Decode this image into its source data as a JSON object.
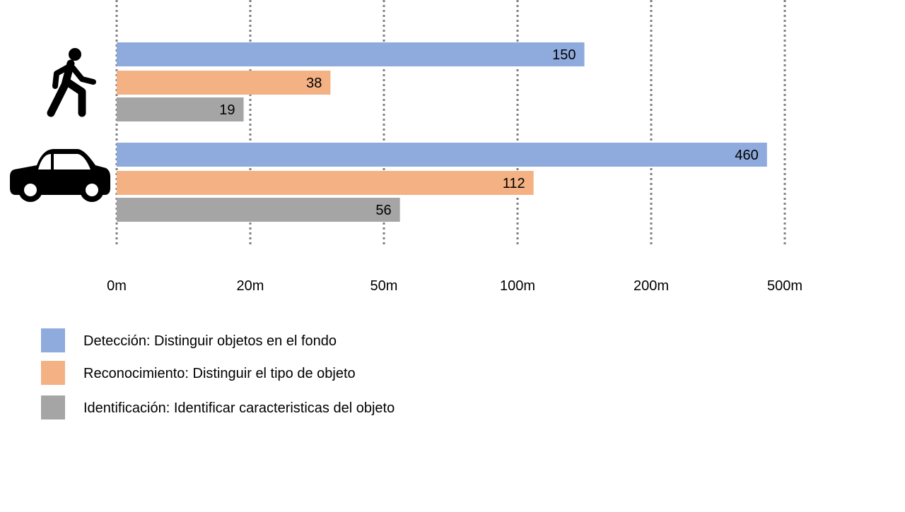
{
  "chart_data": {
    "type": "bar",
    "orientation": "horizontal",
    "scale": "piecewise",
    "axis_ticks": [
      {
        "label": "0m",
        "value": 0
      },
      {
        "label": "20m",
        "value": 20
      },
      {
        "label": "50m",
        "value": 50
      },
      {
        "label": "100m",
        "value": 100
      },
      {
        "label": "200m",
        "value": 200
      },
      {
        "label": "500m",
        "value": 500
      }
    ],
    "grid": true,
    "categories": [
      {
        "icon": "pedestrian-icon"
      },
      {
        "icon": "car-icon"
      }
    ],
    "series": [
      {
        "name": "Detección: Distinguir objetos en el fondo",
        "color": "#8faadc",
        "values": [
          150,
          460
        ]
      },
      {
        "name": "Reconocimiento: Distinguir el tipo de objeto",
        "color": "#f4b183",
        "values": [
          38,
          112
        ]
      },
      {
        "name": "Identificación: Identificar caracteristicas del objeto",
        "color": "#a5a5a5",
        "values": [
          19,
          56
        ]
      }
    ],
    "legend_position": "bottom-left"
  }
}
